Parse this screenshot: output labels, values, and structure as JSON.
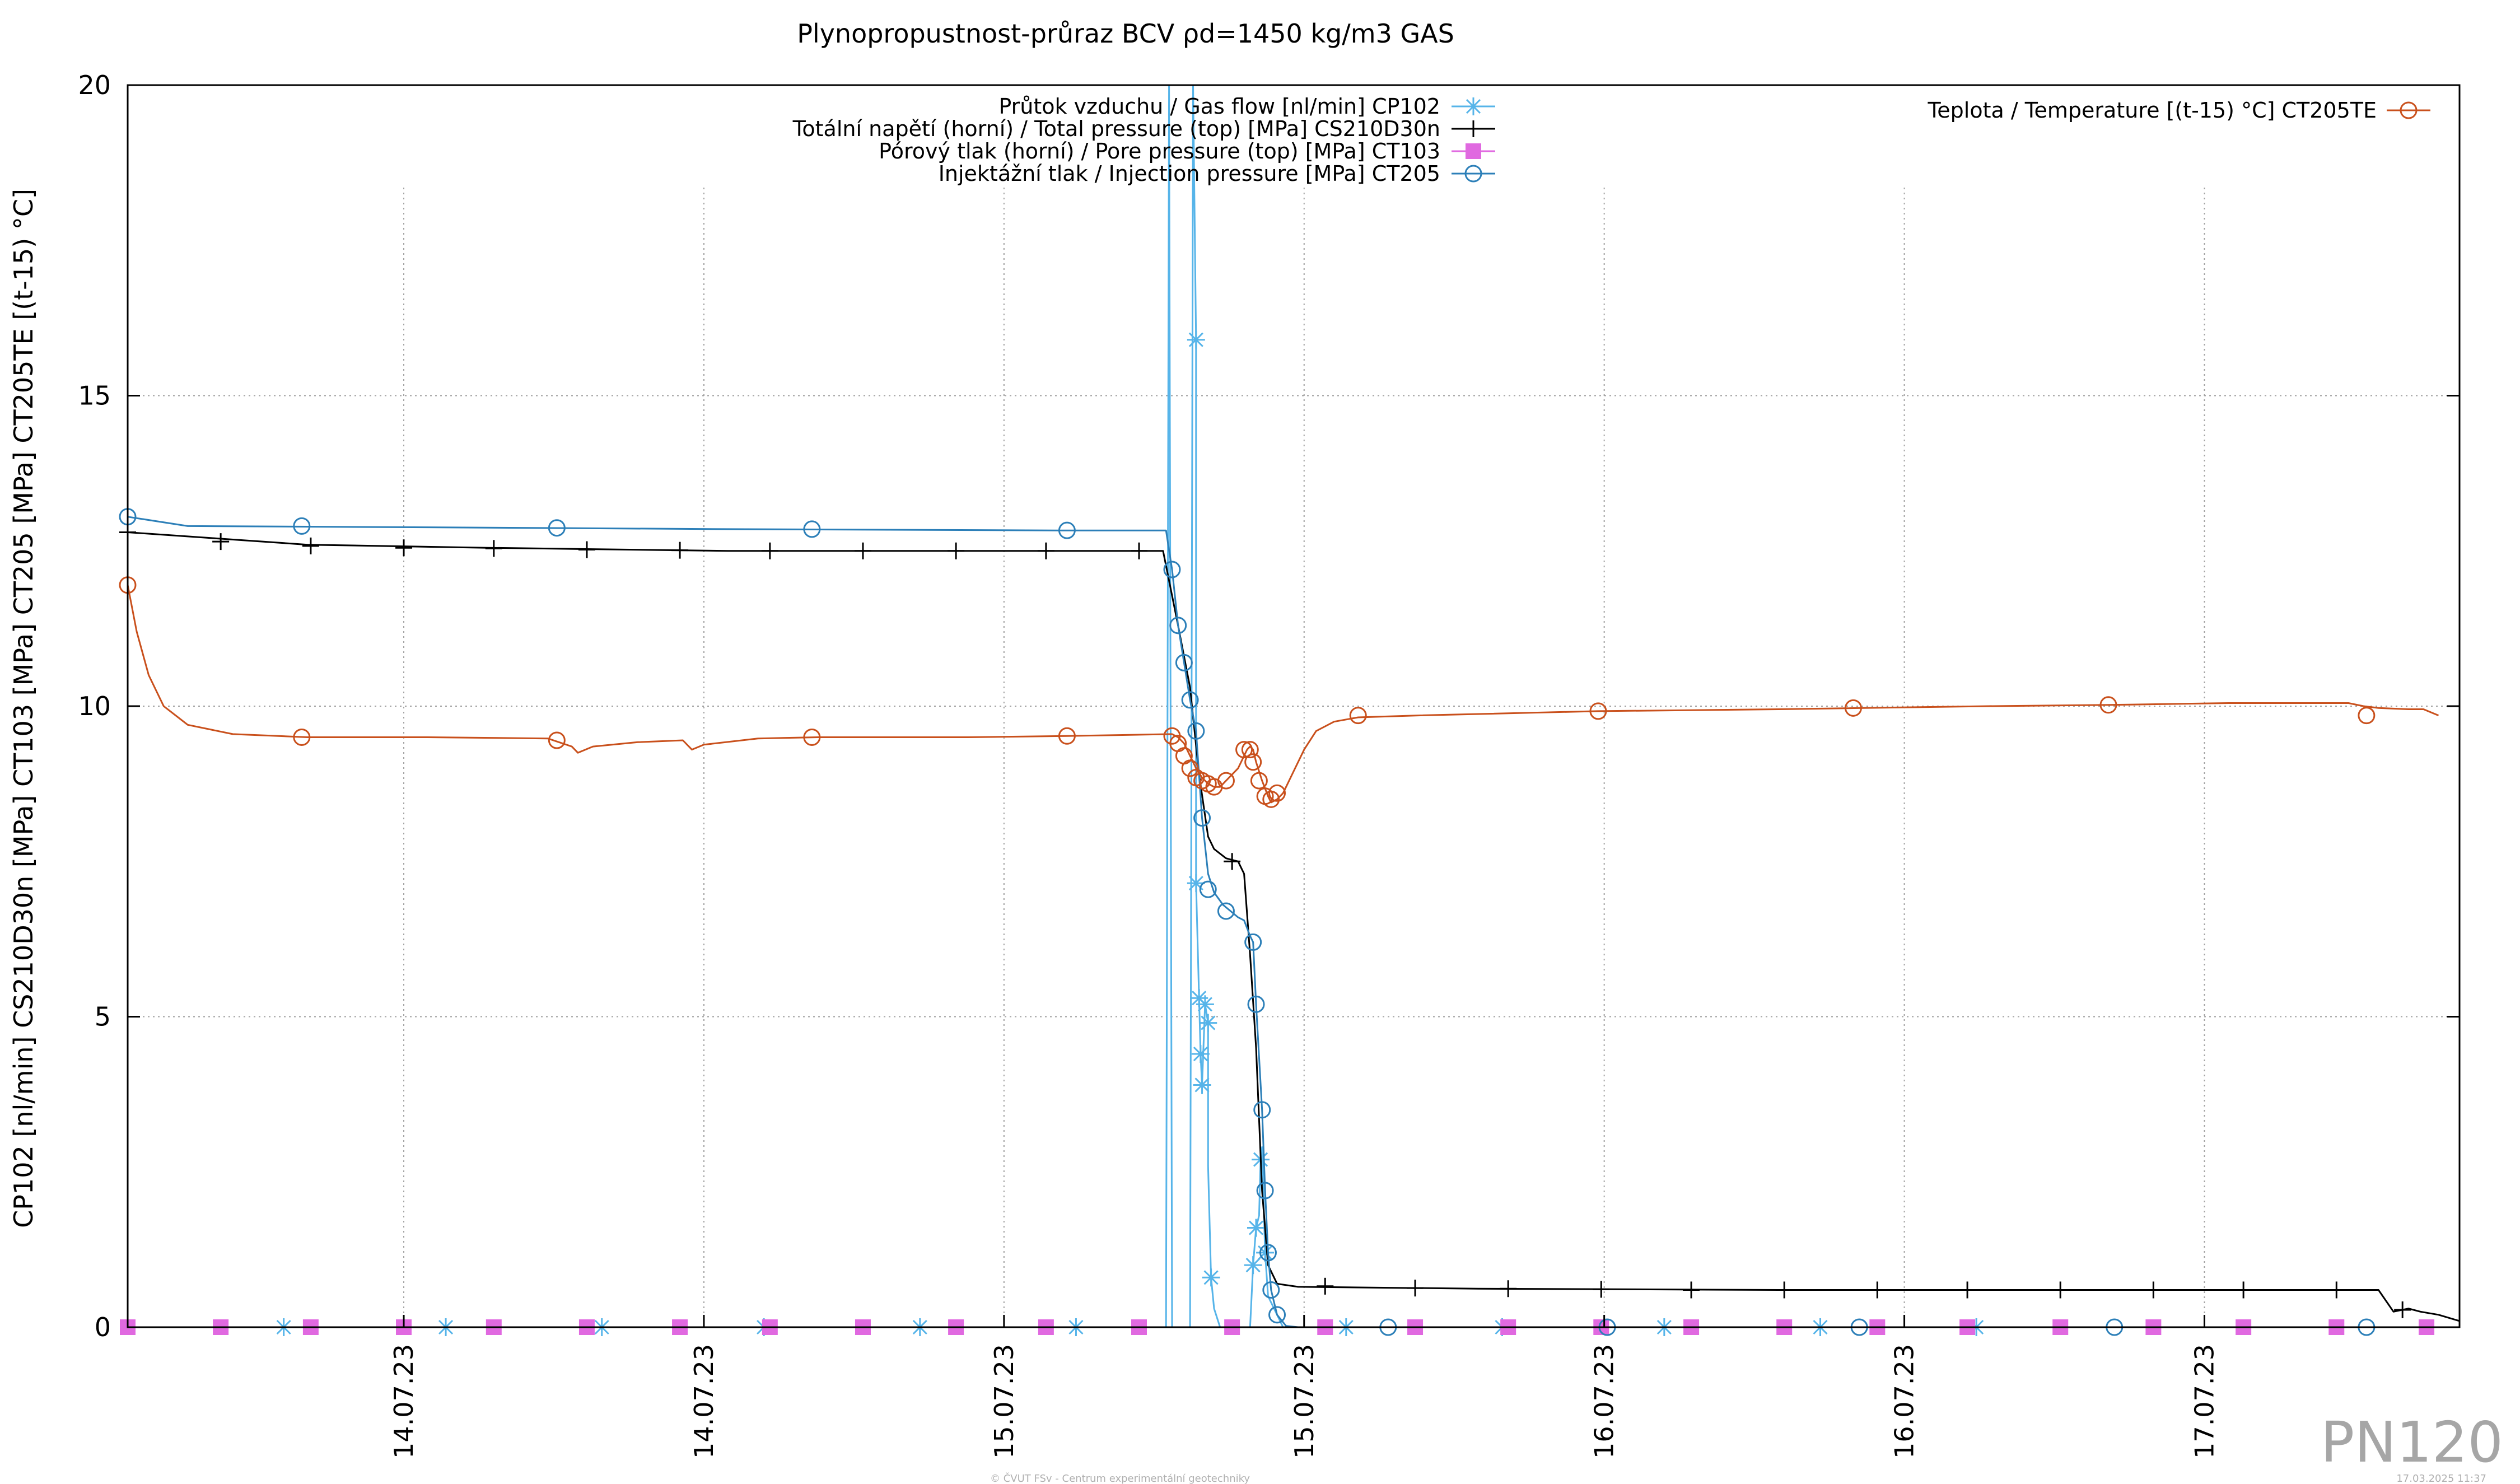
{
  "chart_data": {
    "type": "line",
    "title": "Plynopropustnost-průraz BCV ρd=1450 kg/m3 GAS",
    "ylabel": "CP102 [nl/min] CS210D30n [MPa] CT103 [MPa] CT205 [MPa] CT205TE [(t-15) °C]",
    "ylim": [
      0,
      20
    ],
    "yticks": [
      0,
      5,
      10,
      15,
      20
    ],
    "xlim": [
      0,
      7.77
    ],
    "xticks": [
      {
        "x": 0.92,
        "label": "14.07.23"
      },
      {
        "x": 1.92,
        "label": "14.07.23"
      },
      {
        "x": 2.92,
        "label": "15.07.23"
      },
      {
        "x": 3.92,
        "label": "15.07.23"
      },
      {
        "x": 4.92,
        "label": "16.07.23"
      },
      {
        "x": 5.92,
        "label": "16.07.23"
      },
      {
        "x": 6.92,
        "label": "17.07.23"
      }
    ],
    "grid": true,
    "legend_left_placement": "top-center",
    "legend_right_placement": "top-right",
    "series": [
      {
        "name": "Průtok vzduchu / Gas flow [nl/min] CP102",
        "color": "#56b4e9",
        "marker": "star",
        "axis": "left",
        "points": [
          [
            0,
            0
          ],
          [
            3.46,
            0
          ],
          [
            3.47,
            20
          ],
          [
            3.48,
            0
          ],
          [
            3.54,
            0
          ],
          [
            3.55,
            20
          ],
          [
            3.56,
            15.9
          ],
          [
            3.56,
            7.15
          ],
          [
            3.57,
            5.3
          ],
          [
            3.575,
            4.4
          ],
          [
            3.58,
            3.9
          ],
          [
            3.59,
            5.2
          ],
          [
            3.6,
            4.9
          ],
          [
            3.6,
            2.6
          ],
          [
            3.61,
            0.8
          ],
          [
            3.62,
            0.3
          ],
          [
            3.64,
            0
          ],
          [
            3.74,
            0
          ],
          [
            3.75,
            1
          ],
          [
            3.76,
            1.6
          ],
          [
            3.77,
            1.8
          ],
          [
            3.775,
            2.7
          ],
          [
            3.78,
            2.9
          ],
          [
            3.79,
            1.2
          ],
          [
            3.8,
            0.5
          ],
          [
            3.85,
            0
          ],
          [
            7.77,
            0
          ]
        ],
        "markers": [
          [
            0.52,
            0
          ],
          [
            1.06,
            0
          ],
          [
            1.58,
            0
          ],
          [
            2.12,
            0
          ],
          [
            2.64,
            0
          ],
          [
            3.16,
            0
          ],
          [
            3.56,
            15.9
          ],
          [
            3.56,
            7.15
          ],
          [
            3.57,
            5.3
          ],
          [
            3.575,
            4.4
          ],
          [
            3.58,
            3.9
          ],
          [
            3.59,
            5.2
          ],
          [
            3.6,
            4.9
          ],
          [
            3.61,
            0.8
          ],
          [
            3.75,
            1
          ],
          [
            3.76,
            1.6
          ],
          [
            3.775,
            2.7
          ],
          [
            3.79,
            1.2
          ],
          [
            4.06,
            0
          ],
          [
            4.58,
            0
          ],
          [
            5.12,
            0
          ],
          [
            5.64,
            0
          ],
          [
            6.16,
            0
          ]
        ]
      },
      {
        "name": "Totální napětí (horní) / Total pressure (top) [MPa] CS210D30n",
        "color": "#000000",
        "marker": "plus",
        "axis": "left",
        "points": [
          [
            0,
            12.8
          ],
          [
            0.3,
            12.7
          ],
          [
            0.6,
            12.6
          ],
          [
            1.2,
            12.55
          ],
          [
            2,
            12.5
          ],
          [
            3.45,
            12.5
          ],
          [
            3.5,
            11.3
          ],
          [
            3.54,
            10.3
          ],
          [
            3.57,
            8.9
          ],
          [
            3.6,
            7.9
          ],
          [
            3.62,
            7.7
          ],
          [
            3.66,
            7.55
          ],
          [
            3.7,
            7.5
          ],
          [
            3.72,
            7.3
          ],
          [
            3.74,
            6
          ],
          [
            3.76,
            4.5
          ],
          [
            3.78,
            2.2
          ],
          [
            3.8,
            1
          ],
          [
            3.83,
            0.7
          ],
          [
            3.9,
            0.65
          ],
          [
            4.5,
            0.62
          ],
          [
            5.5,
            0.6
          ],
          [
            6.5,
            0.6
          ],
          [
            7.5,
            0.6
          ],
          [
            7.55,
            0.25
          ],
          [
            7.6,
            0.3
          ],
          [
            7.64,
            0.25
          ],
          [
            7.7,
            0.2
          ],
          [
            7.77,
            0.1
          ]
        ],
        "markers": [
          [
            0,
            12.8
          ],
          [
            0.31,
            12.65
          ],
          [
            0.61,
            12.58
          ],
          [
            0.92,
            12.55
          ],
          [
            1.22,
            12.54
          ],
          [
            1.53,
            12.52
          ],
          [
            1.84,
            12.51
          ],
          [
            2.14,
            12.5
          ],
          [
            2.45,
            12.5
          ],
          [
            2.76,
            12.5
          ],
          [
            3.06,
            12.5
          ],
          [
            3.37,
            12.5
          ],
          [
            3.68,
            7.5
          ],
          [
            3.99,
            0.66
          ],
          [
            4.29,
            0.63
          ],
          [
            4.6,
            0.62
          ],
          [
            4.91,
            0.61
          ],
          [
            5.21,
            0.6
          ],
          [
            5.52,
            0.6
          ],
          [
            5.83,
            0.6
          ],
          [
            6.13,
            0.6
          ],
          [
            6.44,
            0.6
          ],
          [
            6.75,
            0.6
          ],
          [
            7.05,
            0.6
          ],
          [
            7.36,
            0.6
          ],
          [
            7.58,
            0.28
          ]
        ]
      },
      {
        "name": "Pórový tlak (horní) / Pore pressure (top) [MPa] CT103",
        "color": "#e069e0",
        "marker": "square",
        "axis": "left",
        "points": [
          [
            0,
            0
          ],
          [
            7.77,
            0
          ]
        ],
        "markers": [
          [
            0,
            0
          ],
          [
            0.31,
            0
          ],
          [
            0.61,
            0
          ],
          [
            0.92,
            0
          ],
          [
            1.22,
            0
          ],
          [
            1.53,
            0
          ],
          [
            1.84,
            0
          ],
          [
            2.14,
            0
          ],
          [
            2.45,
            0
          ],
          [
            2.76,
            0
          ],
          [
            3.06,
            0
          ],
          [
            3.37,
            0
          ],
          [
            3.68,
            0
          ],
          [
            3.99,
            0
          ],
          [
            4.29,
            0
          ],
          [
            4.6,
            0
          ],
          [
            4.91,
            0
          ],
          [
            5.21,
            0
          ],
          [
            5.52,
            0
          ],
          [
            5.83,
            0
          ],
          [
            6.13,
            0
          ],
          [
            6.44,
            0
          ],
          [
            6.75,
            0
          ],
          [
            7.05,
            0
          ],
          [
            7.36,
            0
          ],
          [
            7.66,
            0
          ]
        ]
      },
      {
        "name": "Injektážní tlak / Injection pressure [MPa] CT205",
        "color": "#2c7fb8",
        "marker": "circle",
        "axis": "left",
        "points": [
          [
            0,
            13.05
          ],
          [
            0.2,
            12.9
          ],
          [
            1,
            12.88
          ],
          [
            2,
            12.85
          ],
          [
            3.1,
            12.83
          ],
          [
            3.46,
            12.83
          ],
          [
            3.48,
            12.2
          ],
          [
            3.5,
            11.3
          ],
          [
            3.52,
            10.7
          ],
          [
            3.54,
            10.1
          ],
          [
            3.56,
            9.6
          ],
          [
            3.58,
            8.2
          ],
          [
            3.6,
            7.3
          ],
          [
            3.62,
            7
          ],
          [
            3.65,
            6.8
          ],
          [
            3.7,
            6.6
          ],
          [
            3.72,
            6.55
          ],
          [
            3.74,
            6.3
          ],
          [
            3.75,
            6.2
          ],
          [
            3.76,
            5.2
          ],
          [
            3.78,
            3.5
          ],
          [
            3.79,
            2.2
          ],
          [
            3.8,
            1.2
          ],
          [
            3.81,
            0.6
          ],
          [
            3.83,
            0.2
          ],
          [
            3.86,
            0.02
          ],
          [
            3.9,
            0
          ],
          [
            7.77,
            0
          ]
        ],
        "markers": [
          [
            0,
            13.05
          ],
          [
            0.58,
            12.9
          ],
          [
            1.43,
            12.87
          ],
          [
            2.28,
            12.85
          ],
          [
            3.13,
            12.83
          ],
          [
            3.48,
            12.2
          ],
          [
            3.5,
            11.3
          ],
          [
            3.52,
            10.7
          ],
          [
            3.54,
            10.1
          ],
          [
            3.56,
            9.6
          ],
          [
            3.58,
            8.2
          ],
          [
            3.6,
            7.05
          ],
          [
            3.66,
            6.7
          ],
          [
            3.75,
            6.2
          ],
          [
            3.76,
            5.2
          ],
          [
            3.78,
            3.5
          ],
          [
            3.79,
            2.2
          ],
          [
            3.8,
            1.2
          ],
          [
            3.81,
            0.6
          ],
          [
            3.83,
            0.2
          ],
          [
            4.2,
            0
          ],
          [
            4.93,
            0
          ],
          [
            5.77,
            0
          ],
          [
            6.62,
            0
          ],
          [
            7.46,
            0
          ]
        ]
      },
      {
        "name": "Teplota / Temperature [(t-15) °C] CT205TE",
        "color": "#c9501c",
        "marker": "circle",
        "axis": "right",
        "points": [
          [
            0,
            11.95
          ],
          [
            0.03,
            11.2
          ],
          [
            0.07,
            10.5
          ],
          [
            0.12,
            10
          ],
          [
            0.2,
            9.7
          ],
          [
            0.35,
            9.55
          ],
          [
            0.6,
            9.5
          ],
          [
            1.0,
            9.5
          ],
          [
            1.4,
            9.48
          ],
          [
            1.48,
            9.35
          ],
          [
            1.5,
            9.25
          ],
          [
            1.55,
            9.35
          ],
          [
            1.7,
            9.42
          ],
          [
            1.85,
            9.45
          ],
          [
            1.88,
            9.3
          ],
          [
            1.92,
            9.38
          ],
          [
            2.1,
            9.48
          ],
          [
            2.3,
            9.5
          ],
          [
            2.8,
            9.5
          ],
          [
            3.13,
            9.52
          ],
          [
            3.48,
            9.55
          ],
          [
            3.5,
            9.5
          ],
          [
            3.52,
            9.4
          ],
          [
            3.54,
            9.2
          ],
          [
            3.56,
            9
          ],
          [
            3.58,
            8.85
          ],
          [
            3.6,
            8.75
          ],
          [
            3.62,
            8.7
          ],
          [
            3.64,
            8.7
          ],
          [
            3.66,
            8.8
          ],
          [
            3.7,
            9
          ],
          [
            3.72,
            9.2
          ],
          [
            3.73,
            9.3
          ],
          [
            3.74,
            9.35
          ],
          [
            3.75,
            9.3
          ],
          [
            3.76,
            9.1
          ],
          [
            3.78,
            8.8
          ],
          [
            3.8,
            8.55
          ],
          [
            3.81,
            8.45
          ],
          [
            3.83,
            8.5
          ],
          [
            3.85,
            8.6
          ],
          [
            3.88,
            8.9
          ],
          [
            3.92,
            9.3
          ],
          [
            3.96,
            9.6
          ],
          [
            4.02,
            9.75
          ],
          [
            4.1,
            9.82
          ],
          [
            4.3,
            9.85
          ],
          [
            4.9,
            9.92
          ],
          [
            5.5,
            9.95
          ],
          [
            6.2,
            10
          ],
          [
            6.6,
            10.02
          ],
          [
            7,
            10.05
          ],
          [
            7.4,
            10.05
          ],
          [
            7.45,
            10.0
          ],
          [
            7.5,
            9.97
          ],
          [
            7.6,
            9.95
          ],
          [
            7.65,
            9.95
          ],
          [
            7.7,
            9.85
          ]
        ],
        "markers": [
          [
            0,
            11.95
          ],
          [
            0.58,
            9.5
          ],
          [
            1.43,
            9.45
          ],
          [
            2.28,
            9.5
          ],
          [
            3.13,
            9.52
          ],
          [
            3.48,
            9.52
          ],
          [
            3.5,
            9.4
          ],
          [
            3.52,
            9.2
          ],
          [
            3.54,
            9
          ],
          [
            3.56,
            8.85
          ],
          [
            3.58,
            8.8
          ],
          [
            3.6,
            8.75
          ],
          [
            3.62,
            8.7
          ],
          [
            3.66,
            8.8
          ],
          [
            3.72,
            9.3
          ],
          [
            3.74,
            9.3
          ],
          [
            3.75,
            9.1
          ],
          [
            3.77,
            8.8
          ],
          [
            3.79,
            8.55
          ],
          [
            3.81,
            8.5
          ],
          [
            3.83,
            8.6
          ],
          [
            4.1,
            9.85
          ],
          [
            4.9,
            9.92
          ],
          [
            5.75,
            9.97
          ],
          [
            6.6,
            10.02
          ],
          [
            7.46,
            9.85
          ]
        ]
      }
    ]
  },
  "corner_label": "PN120",
  "footer_left": "© ČVUT FSv - Centrum experimentální geotechniky",
  "footer_right": "17.03.2025 11:37"
}
